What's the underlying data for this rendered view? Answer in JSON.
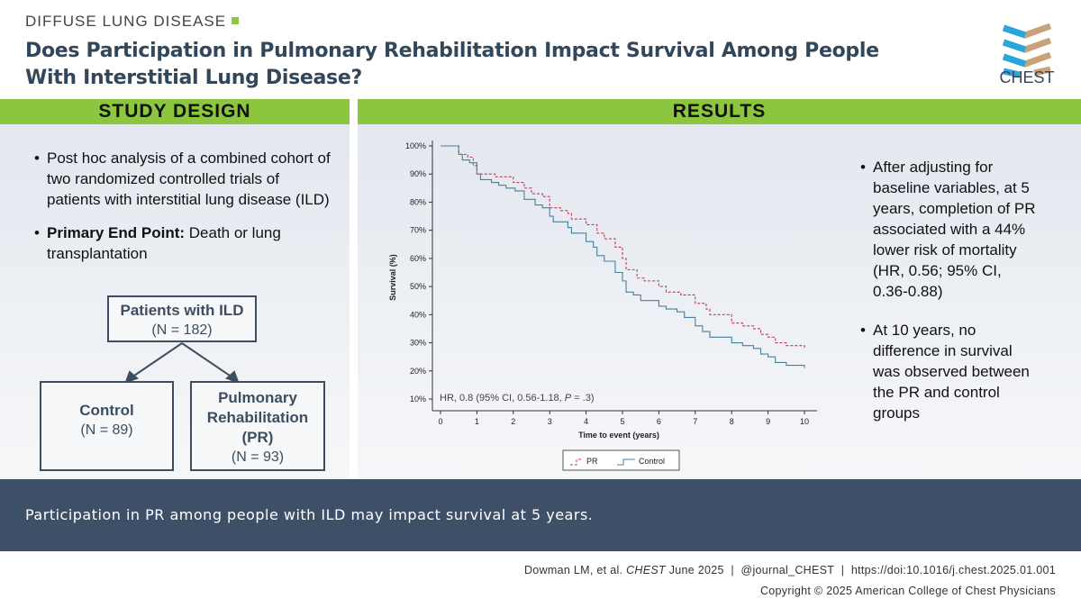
{
  "header": {
    "category": "DIFFUSE LUNG DISEASE",
    "title_line1": "Does Participation in Pulmonary Rehabilitation Impact Survival Among People",
    "title_line2": "With Interstitial Lung Disease?",
    "logo_text": "CHEST"
  },
  "study_design": {
    "heading": "STUDY DESIGN",
    "bullet1": "Post hoc analysis of a combined cohort of two randomized controlled trials of patients with interstitial lung disease (ILD)",
    "bullet2_bold": "Primary End Point:",
    "bullet2_rest": " Death or lung transplantation",
    "flow": {
      "top_title": "Patients with ILD",
      "top_n": "(N = 182)",
      "left_title": "Control",
      "left_n": "(N = 89)",
      "right_title_1": "Pulmonary",
      "right_title_2": "Rehabilitation",
      "right_title_3": "(PR)",
      "right_n": "(N = 93)"
    }
  },
  "results": {
    "heading": "RESULTS",
    "bullet1": "After adjusting for baseline variables, at 5 years, completion of PR associated with a 44% lower risk of mortality (HR, 0.56; 95% CI, 0.36-0.88)",
    "bullet2": "At 10 years, no difference in survival was observed between the PR and control groups"
  },
  "chart_data": {
    "type": "line",
    "xlabel": "Time to event (years)",
    "ylabel": "Survival (%)",
    "xlim": [
      0,
      10
    ],
    "ylim": [
      10,
      100
    ],
    "xticks": [
      "0",
      "1",
      "2",
      "3",
      "4",
      "5",
      "6",
      "7",
      "8",
      "9",
      "10"
    ],
    "yticks": [
      "100%",
      "90%",
      "80%",
      "70%",
      "60%",
      "50%",
      "40%",
      "30%",
      "20%",
      "10%"
    ],
    "annotation_prefix": "HR, 0.8 (95% CI, 0.56-1.18, ",
    "annotation_p": "P",
    "annotation_suffix": " = .3)",
    "legend_position": "bottom",
    "series": [
      {
        "name": "PR",
        "color": "#c0395a",
        "dash": true,
        "points": [
          [
            0,
            100
          ],
          [
            0.5,
            97
          ],
          [
            0.75,
            96
          ],
          [
            0.9,
            93
          ],
          [
            1,
            90
          ],
          [
            1.5,
            89
          ],
          [
            2,
            87
          ],
          [
            2.3,
            85
          ],
          [
            2.5,
            83
          ],
          [
            2.8,
            82
          ],
          [
            3,
            78
          ],
          [
            3.3,
            77
          ],
          [
            3.5,
            76
          ],
          [
            3.6,
            74
          ],
          [
            4,
            72
          ],
          [
            4.3,
            69
          ],
          [
            4.5,
            67
          ],
          [
            4.8,
            64
          ],
          [
            5,
            60
          ],
          [
            5.1,
            56
          ],
          [
            5.4,
            53
          ],
          [
            5.6,
            52
          ],
          [
            6,
            50
          ],
          [
            6.2,
            48
          ],
          [
            6.6,
            47
          ],
          [
            7,
            44
          ],
          [
            7.3,
            42
          ],
          [
            7.4,
            40
          ],
          [
            7.9,
            40
          ],
          [
            8,
            37
          ],
          [
            8.3,
            36
          ],
          [
            8.6,
            35
          ],
          [
            8.8,
            33
          ],
          [
            9,
            32
          ],
          [
            9.2,
            30
          ],
          [
            9.5,
            29
          ],
          [
            10,
            28
          ]
        ]
      },
      {
        "name": "Control",
        "color": "#4a7f9c",
        "dash": false,
        "points": [
          [
            0,
            100
          ],
          [
            0.5,
            97
          ],
          [
            0.6,
            95
          ],
          [
            0.8,
            94
          ],
          [
            1,
            90
          ],
          [
            1.1,
            88
          ],
          [
            1.4,
            87
          ],
          [
            1.6,
            86
          ],
          [
            1.8,
            85
          ],
          [
            2.05,
            84
          ],
          [
            2.3,
            81
          ],
          [
            2.6,
            79
          ],
          [
            2.8,
            78
          ],
          [
            3,
            75
          ],
          [
            3.1,
            73
          ],
          [
            3.5,
            71
          ],
          [
            3.6,
            69
          ],
          [
            4,
            66
          ],
          [
            4.2,
            64
          ],
          [
            4.3,
            61
          ],
          [
            4.5,
            59
          ],
          [
            4.8,
            55
          ],
          [
            5,
            52
          ],
          [
            5.1,
            48
          ],
          [
            5.3,
            47
          ],
          [
            5.5,
            45
          ],
          [
            6,
            43
          ],
          [
            6.2,
            42
          ],
          [
            6.5,
            41
          ],
          [
            6.7,
            39
          ],
          [
            7,
            36
          ],
          [
            7.2,
            34
          ],
          [
            7.4,
            32
          ],
          [
            8,
            30
          ],
          [
            8.3,
            29
          ],
          [
            8.6,
            28
          ],
          [
            8.8,
            26
          ],
          [
            9,
            25
          ],
          [
            9.2,
            23
          ],
          [
            9.5,
            22
          ],
          [
            10,
            21
          ]
        ]
      }
    ]
  },
  "banner": "Participation in PR among people with ILD may impact survival at 5 years.",
  "footer": {
    "authors": "Dowman LM, et al. ",
    "journal": "CHEST",
    "date": " June 2025",
    "handle": "@journal_CHEST",
    "doi": "https://doi:10.1016/j.chest.2025.01.001",
    "copyright": "Copyright © 2025 American College of Chest Physicians",
    "sep": "|"
  },
  "colors": {
    "green": "#8cc63f",
    "navy": "#3e5068",
    "pr": "#c0395a",
    "control": "#4a7f9c"
  }
}
